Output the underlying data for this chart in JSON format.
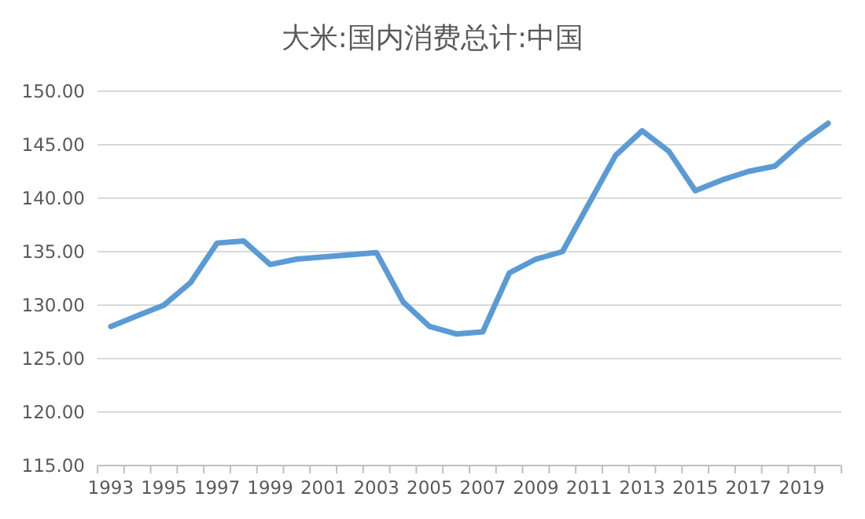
{
  "chart_data": {
    "type": "line",
    "title": "大米:国内消费总计:中国",
    "categories": [
      "1993",
      null,
      "1995",
      null,
      "1997",
      null,
      "1999",
      null,
      "2001",
      null,
      "2003",
      null,
      "2005",
      null,
      "2007",
      null,
      "2009",
      null,
      "2011",
      null,
      "2013",
      null,
      "2015",
      null,
      "2017",
      null,
      "2019",
      null
    ],
    "series": [
      {
        "color": "#5b9bd5",
        "values": [
          128,
          129,
          130,
          132.1,
          135.8,
          136,
          133.8,
          134.3,
          134.5,
          134.7,
          134.9,
          130.3,
          128,
          127.3,
          127.5,
          133,
          134.3,
          135,
          139.5,
          144,
          146.3,
          144.4,
          140.7,
          141.7,
          142.5,
          143,
          145.2,
          147
        ]
      }
    ],
    "ylim": [
      115,
      150
    ],
    "yticks": [
      {
        "value": 115,
        "label": "115.00"
      },
      {
        "value": 120,
        "label": "120.00"
      },
      {
        "value": 125,
        "label": "125.00"
      },
      {
        "value": 130,
        "label": "130.00"
      },
      {
        "value": 135,
        "label": "135.00"
      },
      {
        "value": 140,
        "label": "140.00"
      },
      {
        "value": 145,
        "label": "145.00"
      },
      {
        "value": 150,
        "label": "150.00"
      }
    ],
    "grid": "y",
    "marker": "none",
    "line_style": "solid"
  }
}
